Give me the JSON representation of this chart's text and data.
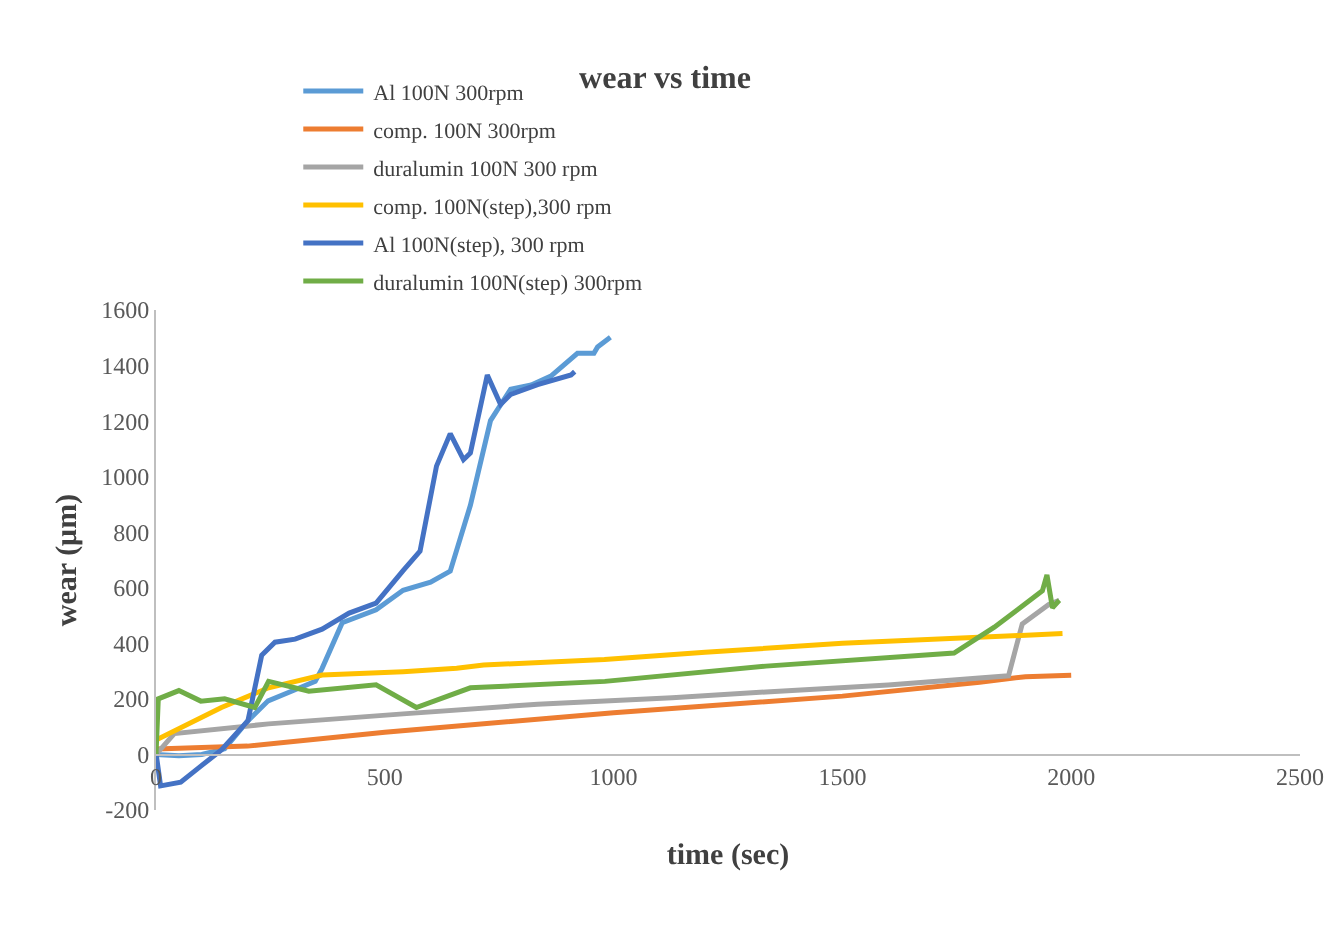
{
  "chart_data": {
    "type": "line",
    "title": "wear vs time",
    "xlabel": "time (sec)",
    "ylabel": "wear (μm)",
    "xlim": [
      0,
      2500
    ],
    "xticks": [
      0,
      500,
      1000,
      1500,
      2000,
      2500
    ],
    "ylim": [
      -200,
      1600
    ],
    "yticks": [
      -200,
      0,
      200,
      400,
      600,
      800,
      1000,
      1200,
      1400,
      1600
    ],
    "grid": false,
    "legend": "top",
    "marker": "none",
    "line_style": "solid",
    "series": [
      {
        "name": "Al 100N 300rpm",
        "color": "#5b9bd5",
        "x": [
          0,
          50,
          100,
          150,
          200,
          245,
          300,
          348,
          363,
          407,
          481,
          540,
          600,
          643,
          687,
          731,
          775,
          820,
          863,
          921,
          957,
          965,
          993
        ],
        "values": [
          0,
          -5,
          0,
          20,
          120,
          193,
          230,
          263,
          310,
          474,
          521,
          591,
          620,
          660,
          897,
          1202,
          1315,
          1330,
          1362,
          1444,
          1444,
          1467,
          1502
        ]
      },
      {
        "name": "comp. 100N 300rpm",
        "color": "#ed7d31",
        "x": [
          0,
          200,
          500,
          1000,
          1500,
          1800,
          1900,
          2000
        ],
        "values": [
          20,
          30,
          80,
          150,
          210,
          260,
          280,
          285
        ]
      },
      {
        "name": "duralumin 100N 300 rpm",
        "color": "#a5a5a5",
        "x": [
          0,
          40,
          246,
          540,
          834,
          1128,
          1333,
          1600,
          1863,
          1893,
          1951,
          1974
        ],
        "values": [
          0,
          75,
          110,
          146,
          181,
          204,
          225,
          250,
          283,
          470,
          540,
          555
        ]
      },
      {
        "name": "comp. 100N(step),300 rpm",
        "color": "#ffc000",
        "x": [
          0,
          143,
          246,
          363,
          540,
          657,
          716,
          980,
          1200,
          1500,
          1981
        ],
        "values": [
          52,
          169,
          240,
          286,
          298,
          310,
          322,
          342,
          368,
          400,
          435
        ]
      },
      {
        "name": "Al 100N(step), 300 rpm",
        "color": "#4472c4",
        "x": [
          0,
          10,
          54,
          98,
          143,
          201,
          231,
          260,
          304,
          363,
          422,
          481,
          540,
          577,
          613,
          643,
          672,
          687,
          724,
          753,
          775,
          834,
          907,
          915
        ],
        "values": [
          5,
          -113,
          -100,
          -42,
          16,
          122,
          357,
          404,
          415,
          451,
          509,
          545,
          662,
          732,
          1038,
          1155,
          1061,
          1085,
          1366,
          1260,
          1296,
          1331,
          1366,
          1378
        ]
      },
      {
        "name": "duralumin 100N(step) 300rpm",
        "color": "#70ad47",
        "x": [
          0,
          5,
          50,
          98,
          150,
          216,
          246,
          334,
          481,
          569,
          687,
          981,
          1333,
          1744,
          1832,
          1937,
          1947,
          1959,
          1974
        ],
        "values": [
          0,
          200,
          230,
          192,
          200,
          169,
          263,
          228,
          251,
          169,
          240,
          263,
          318,
          365,
          458,
          589,
          646,
          528,
          555
        ]
      }
    ]
  }
}
